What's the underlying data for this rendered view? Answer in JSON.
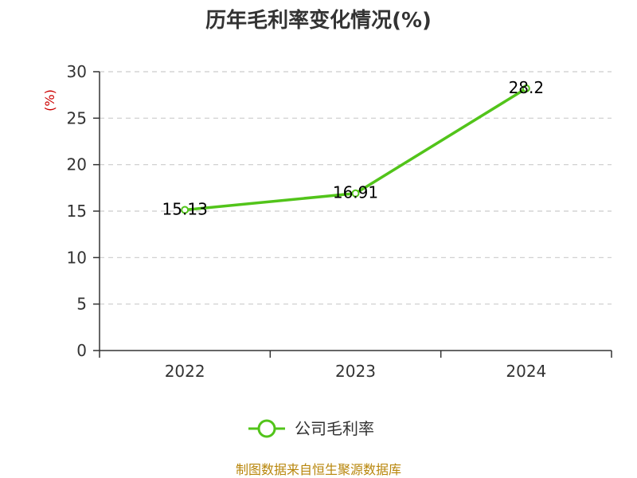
{
  "colors": {
    "series": "#52c41a",
    "title": "#333333",
    "unit": "#cc0000",
    "grid": "#cccccc",
    "axis": "#333333",
    "source": "#b8860b"
  },
  "chart_data": {
    "type": "line",
    "title": "历年毛利率变化情况(%)",
    "ylabel": "(%)",
    "xlabel": "",
    "categories": [
      "2022",
      "2023",
      "2024"
    ],
    "series": [
      {
        "name": "公司毛利率",
        "values": [
          15.13,
          16.91,
          28.2
        ],
        "labels": [
          "15.13",
          "16.91",
          "28.2"
        ]
      }
    ],
    "ylim": [
      0,
      30
    ],
    "yticks": [
      0,
      5,
      10,
      15,
      20,
      25,
      30
    ],
    "grid": "horizontal dashed",
    "legend": "bottom-center"
  },
  "footer": {
    "source": "制图数据来自恒生聚源数据库"
  }
}
